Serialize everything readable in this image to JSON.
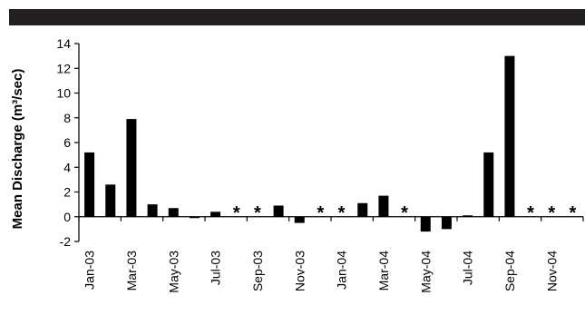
{
  "chart_data": {
    "type": "bar",
    "ylabel": "Mean Discharge (m³/sec)",
    "ylim": [
      -2,
      14
    ],
    "yticks": [
      -2,
      0,
      2,
      4,
      6,
      8,
      10,
      12,
      14
    ],
    "grid": false,
    "legend": "none",
    "bar_color": "#000000",
    "missing_marker": "*",
    "categories": [
      "Jan-03",
      "Feb-03",
      "Mar-03",
      "Apr-03",
      "May-03",
      "Jun-03",
      "Jul-03",
      "Aug-03",
      "Sep-03",
      "Oct-03",
      "Nov-03",
      "Dec-03",
      "Jan-04",
      "Feb-04",
      "Mar-04",
      "Apr-04",
      "May-04",
      "Jun-04",
      "Jul-04",
      "Aug-04",
      "Sep-04",
      "Oct-04",
      "Nov-04",
      "Dec-04"
    ],
    "tick_labels": [
      "Jan-03",
      "Mar-03",
      "May-03",
      "Jul-03",
      "Sep-03",
      "Nov-03",
      "Jan-04",
      "Mar-04",
      "May-04",
      "Jul-04",
      "Sep-04",
      "Nov-04"
    ],
    "values": [
      5.2,
      2.6,
      7.9,
      1.0,
      0.7,
      -0.1,
      0.4,
      null,
      null,
      0.9,
      -0.5,
      null,
      null,
      1.1,
      1.7,
      null,
      -1.2,
      -1.0,
      0.1,
      5.2,
      13.0,
      null,
      null,
      null
    ]
  }
}
